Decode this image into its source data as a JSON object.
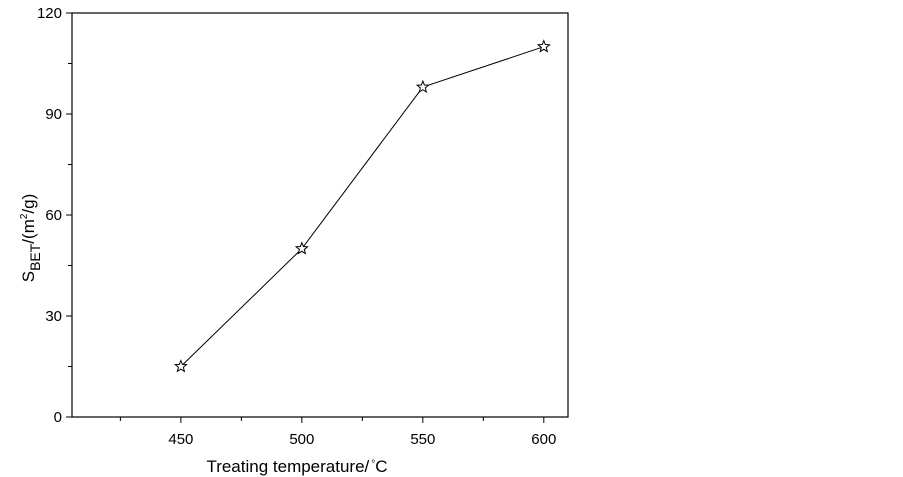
{
  "chart_data": {
    "type": "line",
    "x": [
      450,
      500,
      550,
      600
    ],
    "series": [
      {
        "values": [
          15,
          50,
          98,
          110
        ],
        "marker": "star",
        "color": "#000000"
      }
    ],
    "xlim": [
      405,
      610
    ],
    "ylim": [
      0,
      120
    ],
    "xticks": [
      450,
      500,
      550,
      600
    ],
    "xticks_minor": [
      425,
      475,
      525,
      575
    ],
    "yticks": [
      0,
      30,
      60,
      90,
      120
    ],
    "yticks_minor": [
      15,
      45,
      75,
      105
    ],
    "grid": false,
    "legend": "none",
    "xlabel": {
      "text": "Treating temperature/",
      "degree": "°",
      "unit": "C"
    },
    "ylabel": {
      "base": "S",
      "subscript": "BET",
      "unit_open": "/(m",
      "superscript": "2",
      "unit_close": "/g)"
    }
  }
}
